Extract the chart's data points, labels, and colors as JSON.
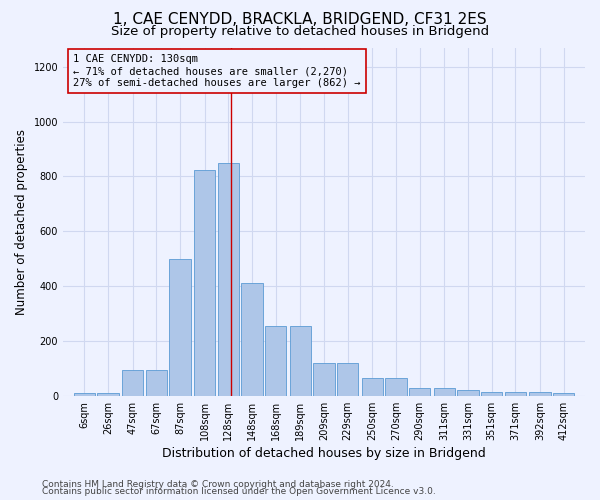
{
  "title": "1, CAE CENYDD, BRACKLA, BRIDGEND, CF31 2ES",
  "subtitle": "Size of property relative to detached houses in Bridgend",
  "xlabel": "Distribution of detached houses by size in Bridgend",
  "ylabel": "Number of detached properties",
  "footer_line1": "Contains HM Land Registry data © Crown copyright and database right 2024.",
  "footer_line2": "Contains public sector information licensed under the Open Government Licence v3.0.",
  "annotation_title": "1 CAE CENYDD: 130sqm",
  "annotation_line2": "← 71% of detached houses are smaller (2,270)",
  "annotation_line3": "27% of semi-detached houses are larger (862) →",
  "property_size_sqm": 130,
  "bar_labels": [
    "6sqm",
    "26sqm",
    "47sqm",
    "67sqm",
    "87sqm",
    "108sqm",
    "128sqm",
    "148sqm",
    "168sqm",
    "189sqm",
    "209sqm",
    "229sqm",
    "250sqm",
    "270sqm",
    "290sqm",
    "311sqm",
    "331sqm",
    "351sqm",
    "371sqm",
    "392sqm",
    "412sqm"
  ],
  "bar_centers": [
    6,
    26,
    47,
    67,
    87,
    108,
    128,
    148,
    168,
    189,
    209,
    229,
    250,
    270,
    290,
    311,
    331,
    351,
    371,
    392,
    412
  ],
  "bar_heights": [
    10,
    10,
    95,
    95,
    500,
    825,
    850,
    410,
    255,
    255,
    120,
    120,
    65,
    65,
    30,
    30,
    20,
    15,
    15,
    15,
    10
  ],
  "bar_color": "#aec6e8",
  "bar_edge_color": "#5b9bd5",
  "redline_color": "#cc0000",
  "annotation_box_edgecolor": "#cc0000",
  "bg_color": "#eef2ff",
  "grid_color": "#d0d8f0",
  "ylim": [
    0,
    1270
  ],
  "yticks": [
    0,
    200,
    400,
    600,
    800,
    1000,
    1200
  ],
  "title_fontsize": 11,
  "subtitle_fontsize": 9.5,
  "xlabel_fontsize": 9,
  "ylabel_fontsize": 8.5,
  "tick_fontsize": 7,
  "footer_fontsize": 6.5,
  "annotation_fontsize": 7.5
}
